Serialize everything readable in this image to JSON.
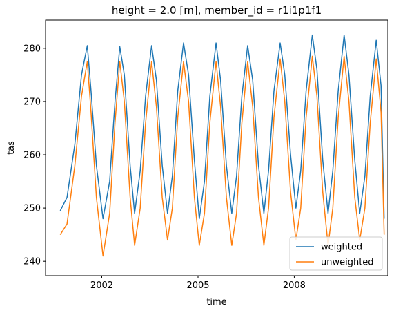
{
  "chart_data": {
    "type": "line",
    "title": "height = 2.0 [m], member_id = r1i1p1f1",
    "xlabel": "time",
    "ylabel": "tas",
    "xlim": [
      "2000-04-01",
      "2010-12-01"
    ],
    "ylim": [
      237.3,
      285.3
    ],
    "x_ticks": [
      {
        "date": "2002-01-01",
        "label": "2002"
      },
      {
        "date": "2005-01-01",
        "label": "2005"
      },
      {
        "date": "2008-01-01",
        "label": "2008"
      }
    ],
    "y_ticks": [
      240,
      250,
      260,
      270,
      280
    ],
    "grid": false,
    "legend_position": "lower-right",
    "series": [
      {
        "name": "weighted",
        "color": "#1f77b4",
        "x": [
          "2000-09-15",
          "2000-12-01",
          "2001-03-01",
          "2001-05-15",
          "2001-07-20",
          "2001-09-01",
          "2001-11-01",
          "2002-01-15",
          "2002-04-01",
          "2002-06-01",
          "2002-07-25",
          "2002-09-15",
          "2002-11-20",
          "2003-01-10",
          "2003-03-15",
          "2003-05-15",
          "2003-07-22",
          "2003-09-15",
          "2003-11-20",
          "2004-01-20",
          "2004-03-15",
          "2004-05-15",
          "2004-07-20",
          "2004-09-15",
          "2004-11-20",
          "2005-01-15",
          "2005-03-15",
          "2005-05-15",
          "2005-07-25",
          "2005-09-15",
          "2005-11-20",
          "2006-01-20",
          "2006-03-15",
          "2006-05-15",
          "2006-07-20",
          "2006-09-15",
          "2006-11-20",
          "2007-01-20",
          "2007-03-15",
          "2007-05-15",
          "2007-07-25",
          "2007-09-15",
          "2007-11-20",
          "2008-01-20",
          "2008-03-15",
          "2008-05-15",
          "2008-07-25",
          "2008-09-15",
          "2008-11-20",
          "2009-01-20",
          "2009-03-15",
          "2009-05-15",
          "2009-07-22",
          "2009-09-15",
          "2009-11-20",
          "2010-01-15",
          "2010-03-15",
          "2010-05-15",
          "2010-07-22",
          "2010-09-15",
          "2010-10-20"
        ],
        "y": [
          249.5,
          252,
          262,
          275,
          280.5,
          272,
          258,
          248,
          255,
          270,
          280.3,
          275,
          258,
          249,
          257,
          271,
          280.5,
          274,
          258,
          249,
          256,
          272,
          281,
          275,
          259,
          248,
          255,
          271,
          281,
          274,
          258,
          249,
          256,
          271,
          280.5,
          274,
          258,
          249,
          257,
          272,
          281,
          275,
          260,
          250,
          257,
          272,
          282.5,
          276,
          259,
          249,
          257,
          272,
          282.5,
          275,
          259,
          249,
          256,
          271,
          281.5,
          273,
          248
        ]
      },
      {
        "name": "unweighted",
        "color": "#ff7f0e",
        "x": [
          "2000-09-15",
          "2000-12-01",
          "2001-03-01",
          "2001-05-15",
          "2001-07-20",
          "2001-09-01",
          "2001-11-01",
          "2002-01-15",
          "2002-04-01",
          "2002-06-01",
          "2002-07-25",
          "2002-09-15",
          "2002-11-20",
          "2003-01-10",
          "2003-03-15",
          "2003-05-15",
          "2003-07-22",
          "2003-09-15",
          "2003-11-20",
          "2004-01-20",
          "2004-03-15",
          "2004-05-15",
          "2004-07-20",
          "2004-09-15",
          "2004-11-20",
          "2005-01-15",
          "2005-03-15",
          "2005-05-15",
          "2005-07-25",
          "2005-09-15",
          "2005-11-20",
          "2006-01-20",
          "2006-03-15",
          "2006-05-15",
          "2006-07-20",
          "2006-09-15",
          "2006-11-20",
          "2007-01-20",
          "2007-03-15",
          "2007-05-15",
          "2007-07-25",
          "2007-09-15",
          "2007-11-20",
          "2008-01-20",
          "2008-03-15",
          "2008-05-15",
          "2008-07-25",
          "2008-09-15",
          "2008-11-20",
          "2009-01-20",
          "2009-03-15",
          "2009-05-15",
          "2009-07-22",
          "2009-09-15",
          "2009-11-20",
          "2010-01-15",
          "2010-03-15",
          "2010-05-15",
          "2010-07-22",
          "2010-09-15",
          "2010-10-20"
        ],
        "y": [
          245,
          247,
          258,
          271,
          277.5,
          268,
          252,
          241,
          249,
          266,
          277.5,
          270,
          252,
          243,
          250,
          266,
          277.5,
          269,
          252,
          244,
          250,
          267,
          277.5,
          270,
          252,
          243,
          249,
          266,
          277.5,
          269,
          252,
          243,
          249,
          266,
          277.5,
          269,
          252,
          243,
          250,
          267,
          278,
          270,
          253,
          244,
          250,
          267,
          278.5,
          271,
          253,
          243,
          250,
          267,
          278.5,
          270,
          252,
          244,
          250,
          266,
          278,
          268,
          245
        ]
      }
    ]
  }
}
